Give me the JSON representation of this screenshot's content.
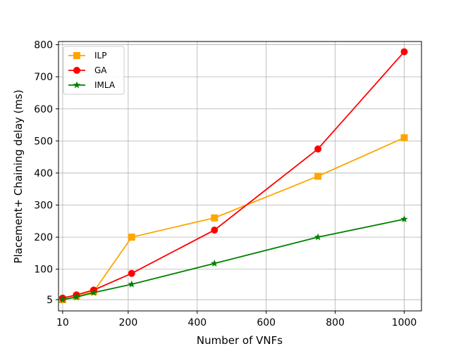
{
  "chart_data": {
    "type": "line",
    "xlabel": "Number of VNFs",
    "ylabel": "Placement+ Chaining delay (ms)",
    "xlim": [
      -2,
      1050
    ],
    "ylim": [
      -30,
      810
    ],
    "x_ticks": [
      10,
      200,
      400,
      600,
      800,
      1000
    ],
    "x_tick_labels": [
      "10",
      "200",
      "400",
      "600",
      "800",
      "1000"
    ],
    "y_ticks": [
      5,
      100,
      200,
      300,
      400,
      500,
      600,
      700,
      800
    ],
    "y_tick_labels": [
      "5",
      "100",
      "200",
      "300",
      "400",
      "500",
      "600",
      "700",
      "800"
    ],
    "grid": true,
    "legend_position": "upper-left",
    "x": [
      10,
      50,
      100,
      210,
      450,
      750,
      1000
    ],
    "series": [
      {
        "name": "ILP",
        "color": "#ffa500",
        "marker": "square",
        "values": [
          5,
          15,
          30,
          200,
          260,
          390,
          510
        ]
      },
      {
        "name": "GA",
        "color": "#ff0000",
        "marker": "circle",
        "values": [
          10,
          20,
          35,
          87,
          222,
          475,
          778
        ]
      },
      {
        "name": "IMLA",
        "color": "#008000",
        "marker": "star",
        "values": [
          5,
          13,
          27,
          53,
          118,
          200,
          256
        ]
      }
    ]
  }
}
